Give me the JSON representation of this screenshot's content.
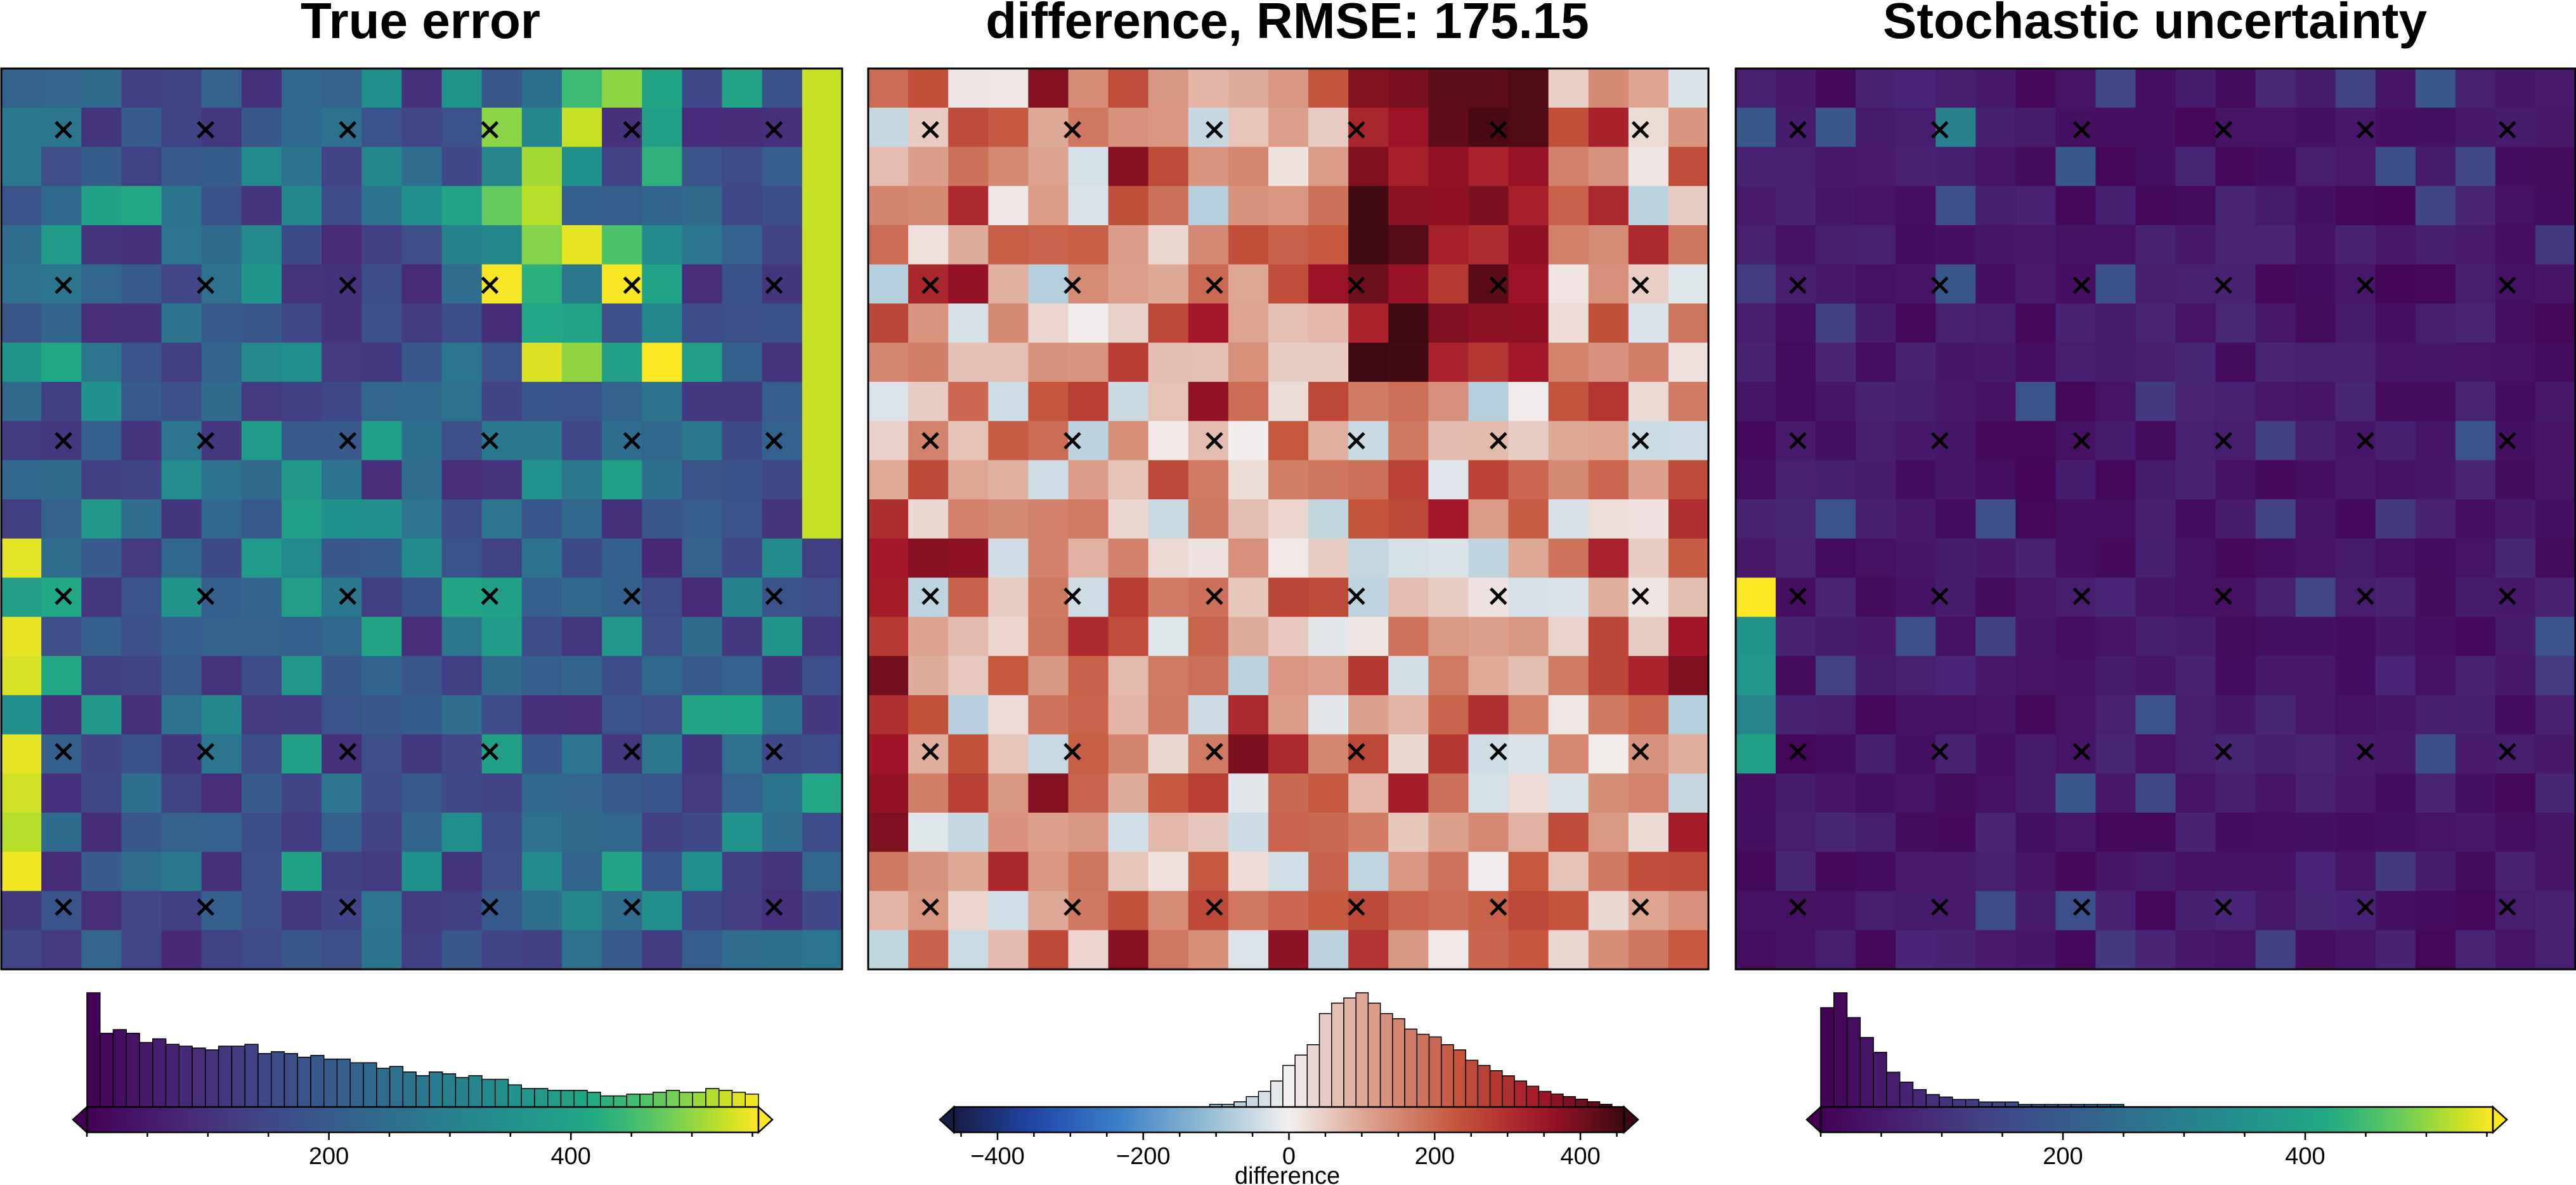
{
  "figure": {
    "titles": [
      "True error",
      "difference, RMSE: 175.15",
      "Stochastic uncertainty"
    ]
  },
  "chart_data": [
    {
      "type": "heatmap",
      "title": "True error",
      "colormap": "viridis",
      "grid": {
        "rows": 23,
        "cols": 21
      },
      "value_range": [
        0,
        555
      ],
      "marker": "x",
      "marker_grid": {
        "rows": 6,
        "cols": 6
      },
      "colorbar": {
        "label": "",
        "range": [
          0,
          555
        ],
        "ticks": [
          200,
          400
        ],
        "tick_labels": [
          "200",
          "400"
        ],
        "histogram_counts": [
          62,
          40,
          42,
          40,
          35,
          37,
          34,
          33,
          32,
          31,
          33,
          33,
          34,
          29,
          30,
          29,
          27,
          28,
          26,
          26,
          24,
          24,
          21,
          22,
          19,
          17,
          19,
          18,
          16,
          17,
          15,
          15,
          12,
          10,
          10,
          9,
          9,
          9,
          8,
          6,
          6,
          7,
          7,
          8,
          9,
          8,
          8,
          10,
          9,
          8,
          7
        ],
        "extend": "both"
      }
    },
    {
      "type": "heatmap",
      "title": "difference, RMSE: 175.15",
      "colormap": "balance",
      "grid": {
        "rows": 23,
        "cols": 21
      },
      "value_range": [
        -460,
        460
      ],
      "marker": "x",
      "marker_grid": {
        "rows": 6,
        "cols": 6
      },
      "colorbar": {
        "label": "difference",
        "range": [
          -460,
          460
        ],
        "ticks": [
          -400,
          -200,
          0,
          200,
          400
        ],
        "tick_labels": [
          "−400",
          "−200",
          "0",
          "200",
          "400"
        ],
        "histogram_counts": [
          0,
          0,
          0,
          0,
          0,
          0,
          0,
          0,
          0,
          0,
          0,
          0,
          0,
          0,
          0,
          0,
          0,
          0,
          0,
          0,
          0,
          1,
          1,
          2,
          4,
          6,
          10,
          16,
          20,
          24,
          36,
          40,
          42,
          44,
          40,
          36,
          34,
          30,
          28,
          27,
          24,
          22,
          18,
          16,
          14,
          12,
          10,
          8,
          6,
          5,
          4,
          3,
          2,
          1,
          0
        ],
        "extend": "both"
      }
    },
    {
      "type": "heatmap",
      "title": "Stochastic uncertainty",
      "colormap": "viridis",
      "grid": {
        "rows": 23,
        "cols": 21
      },
      "value_range": [
        0,
        555
      ],
      "marker": "x",
      "marker_grid": {
        "rows": 6,
        "cols": 6
      },
      "colorbar": {
        "label": "",
        "range": [
          0,
          555
        ],
        "ticks": [
          200,
          400
        ],
        "tick_labels": [
          "200",
          "400"
        ],
        "histogram_counts": [
          40,
          46,
          36,
          28,
          22,
          14,
          10,
          7,
          5,
          4,
          3,
          3,
          2,
          2,
          2,
          1,
          1,
          1,
          1,
          1,
          1,
          1,
          1,
          0,
          0,
          0,
          0,
          0,
          0,
          0,
          0,
          0,
          0,
          0,
          0,
          0,
          0,
          0,
          0,
          0,
          0,
          0,
          0,
          0,
          0,
          0,
          0,
          0,
          0,
          0,
          0
        ],
        "extend": "both"
      }
    }
  ]
}
